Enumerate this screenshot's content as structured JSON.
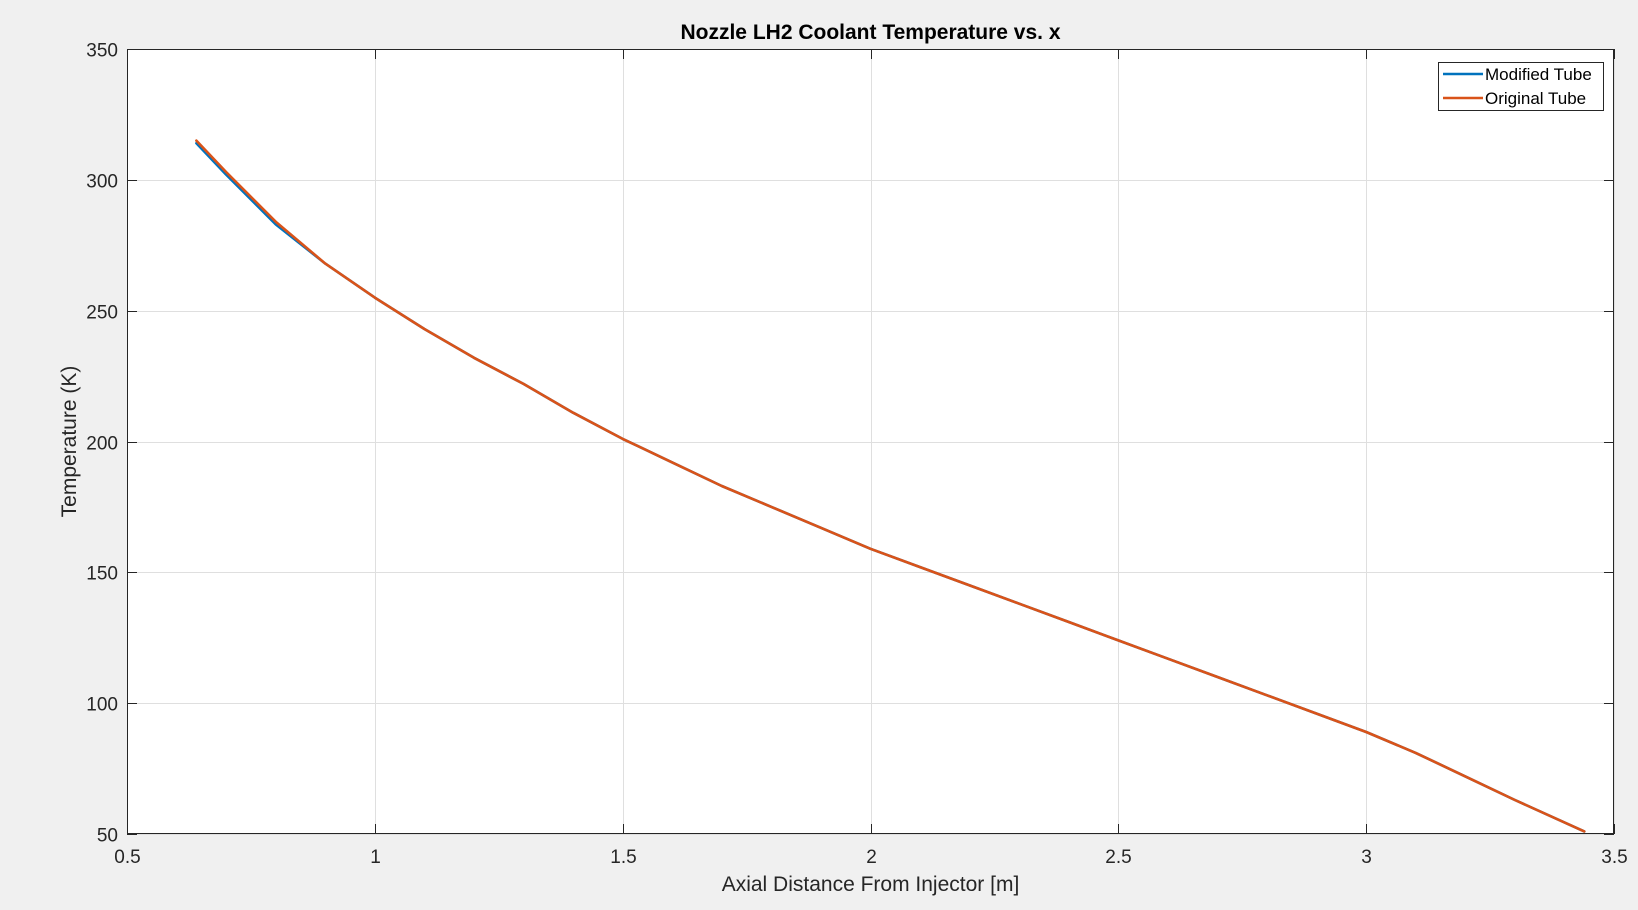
{
  "chart_data": {
    "type": "line",
    "title": "Nozzle LH2 Coolant Temperature vs. x",
    "xlabel": "Axial Distance From Injector [m]",
    "ylabel": "Temperature (K)",
    "xlim": [
      0.5,
      3.5
    ],
    "ylim": [
      50,
      350
    ],
    "xticks": [
      "0.5",
      "1",
      "1.5",
      "2",
      "2.5",
      "3",
      "3.5"
    ],
    "yticks": [
      "50",
      "100",
      "150",
      "200",
      "250",
      "300",
      "350"
    ],
    "grid": true,
    "legend_position": "top-right",
    "series": [
      {
        "name": "Modified Tube",
        "color": "#0072BD",
        "x": [
          0.64,
          0.7,
          0.8,
          0.9,
          1.0,
          1.1,
          1.2,
          1.3,
          1.4,
          1.5,
          1.6,
          1.7,
          1.8,
          1.9,
          2.0,
          2.1,
          2.2,
          2.3,
          2.4,
          2.5,
          2.6,
          2.7,
          2.8,
          2.9,
          3.0,
          3.1,
          3.2,
          3.3,
          3.44
        ],
        "y": [
          314,
          302,
          283,
          268,
          255,
          243,
          232,
          222,
          211,
          201,
          192,
          183,
          175,
          167,
          159,
          152,
          145,
          138,
          131,
          124,
          117,
          110,
          103,
          96,
          89,
          81,
          72,
          63,
          51
        ]
      },
      {
        "name": "Original Tube",
        "color": "#D95319",
        "x": [
          0.64,
          0.7,
          0.8,
          0.9,
          1.0,
          1.1,
          1.2,
          1.3,
          1.4,
          1.5,
          1.6,
          1.7,
          1.8,
          1.9,
          2.0,
          2.1,
          2.2,
          2.3,
          2.4,
          2.5,
          2.6,
          2.7,
          2.8,
          2.9,
          3.0,
          3.1,
          3.2,
          3.3,
          3.44
        ],
        "y": [
          315,
          303,
          284,
          268,
          255,
          243,
          232,
          222,
          211,
          201,
          192,
          183,
          175,
          167,
          159,
          152,
          145,
          138,
          131,
          124,
          117,
          110,
          103,
          96,
          89,
          81,
          72,
          63,
          51
        ]
      }
    ]
  }
}
